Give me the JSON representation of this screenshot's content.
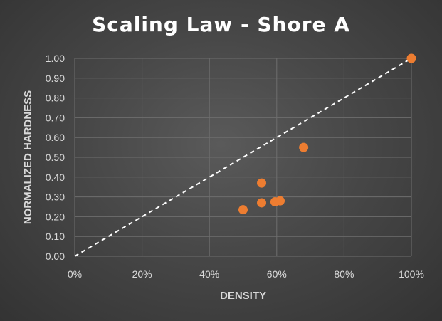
{
  "chart_data": {
    "type": "scatter",
    "title": "Scaling Law - Shore A",
    "xlabel": "DENSITY",
    "ylabel": "NORMALIZED HARDNESS",
    "xlim": [
      0,
      1
    ],
    "ylim": [
      0,
      1
    ],
    "x_ticks": [
      "0%",
      "20%",
      "40%",
      "60%",
      "80%",
      "100%"
    ],
    "y_ticks": [
      "0.00",
      "0.10",
      "0.20",
      "0.30",
      "0.40",
      "0.50",
      "0.60",
      "0.70",
      "0.80",
      "0.90",
      "1.00"
    ],
    "grid": true,
    "reference_line": {
      "x": [
        0,
        1
      ],
      "y": [
        0,
        1
      ],
      "style": "dashed",
      "color": "#ffffff"
    },
    "series": [
      {
        "color": "#ed7d31",
        "points": [
          {
            "x": 0.5,
            "y": 0.235
          },
          {
            "x": 0.555,
            "y": 0.27
          },
          {
            "x": 0.555,
            "y": 0.37
          },
          {
            "x": 0.595,
            "y": 0.275
          },
          {
            "x": 0.61,
            "y": 0.28
          },
          {
            "x": 0.68,
            "y": 0.55
          },
          {
            "x": 1.0,
            "y": 1.0
          }
        ]
      }
    ]
  }
}
